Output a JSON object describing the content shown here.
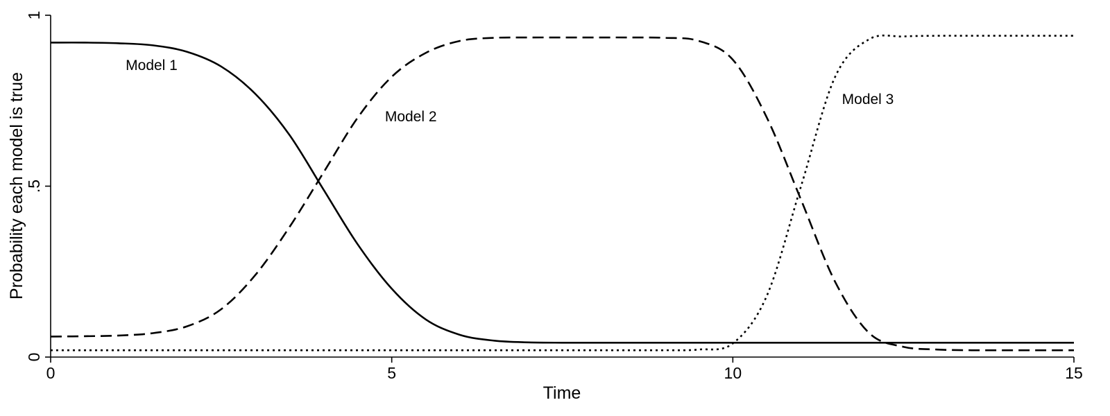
{
  "chart_data": {
    "type": "line",
    "title": "",
    "xlabel": "Time",
    "ylabel": "Probability each model is true",
    "xlim": [
      0,
      15
    ],
    "ylim": [
      0,
      1
    ],
    "xticks": [
      {
        "value": 0,
        "label": "0"
      },
      {
        "value": 5,
        "label": "5"
      },
      {
        "value": 10,
        "label": "10"
      },
      {
        "value": 15,
        "label": "15"
      }
    ],
    "yticks": [
      {
        "value": 0,
        "label": "0"
      },
      {
        "value": 0.5,
        "label": ".5"
      },
      {
        "value": 1,
        "label": "1"
      }
    ],
    "grid": false,
    "legend": "none",
    "x": [
      0,
      0.5,
      1,
      1.5,
      2,
      2.5,
      3,
      3.5,
      4,
      4.5,
      5,
      5.5,
      6,
      6.5,
      7,
      7.5,
      8,
      8.5,
      9,
      9.5,
      10,
      10.5,
      11,
      11.5,
      12,
      12.5,
      13,
      13.5,
      14,
      14.5,
      15
    ],
    "series": [
      {
        "style": "solid",
        "values": [
          0.92,
          0.92,
          0.918,
          0.912,
          0.893,
          0.85,
          0.77,
          0.65,
          0.49,
          0.33,
          0.2,
          0.11,
          0.065,
          0.048,
          0.043,
          0.042,
          0.042,
          0.042,
          0.042,
          0.042,
          0.042,
          0.042,
          0.042,
          0.042,
          0.042,
          0.042,
          0.042,
          0.042,
          0.042,
          0.042,
          0.042
        ]
      },
      {
        "style": "dashed",
        "values": [
          0.06,
          0.061,
          0.063,
          0.07,
          0.09,
          0.14,
          0.24,
          0.38,
          0.54,
          0.7,
          0.82,
          0.89,
          0.925,
          0.934,
          0.935,
          0.935,
          0.935,
          0.935,
          0.934,
          0.925,
          0.87,
          0.7,
          0.46,
          0.22,
          0.07,
          0.03,
          0.022,
          0.02,
          0.02,
          0.02,
          0.02
        ]
      },
      {
        "style": "dotted",
        "values": [
          0.02,
          0.02,
          0.02,
          0.02,
          0.02,
          0.02,
          0.02,
          0.02,
          0.02,
          0.02,
          0.02,
          0.02,
          0.02,
          0.02,
          0.02,
          0.02,
          0.02,
          0.02,
          0.02,
          0.022,
          0.04,
          0.18,
          0.5,
          0.82,
          0.93,
          0.938,
          0.94,
          0.94,
          0.94,
          0.94,
          0.94
        ]
      }
    ],
    "annotations": [
      {
        "text": "Model 1",
        "x": 1.1,
        "y": 0.84
      },
      {
        "text": "Model 2",
        "x": 4.9,
        "y": 0.69
      },
      {
        "text": "Model 3",
        "x": 11.6,
        "y": 0.74
      }
    ]
  }
}
